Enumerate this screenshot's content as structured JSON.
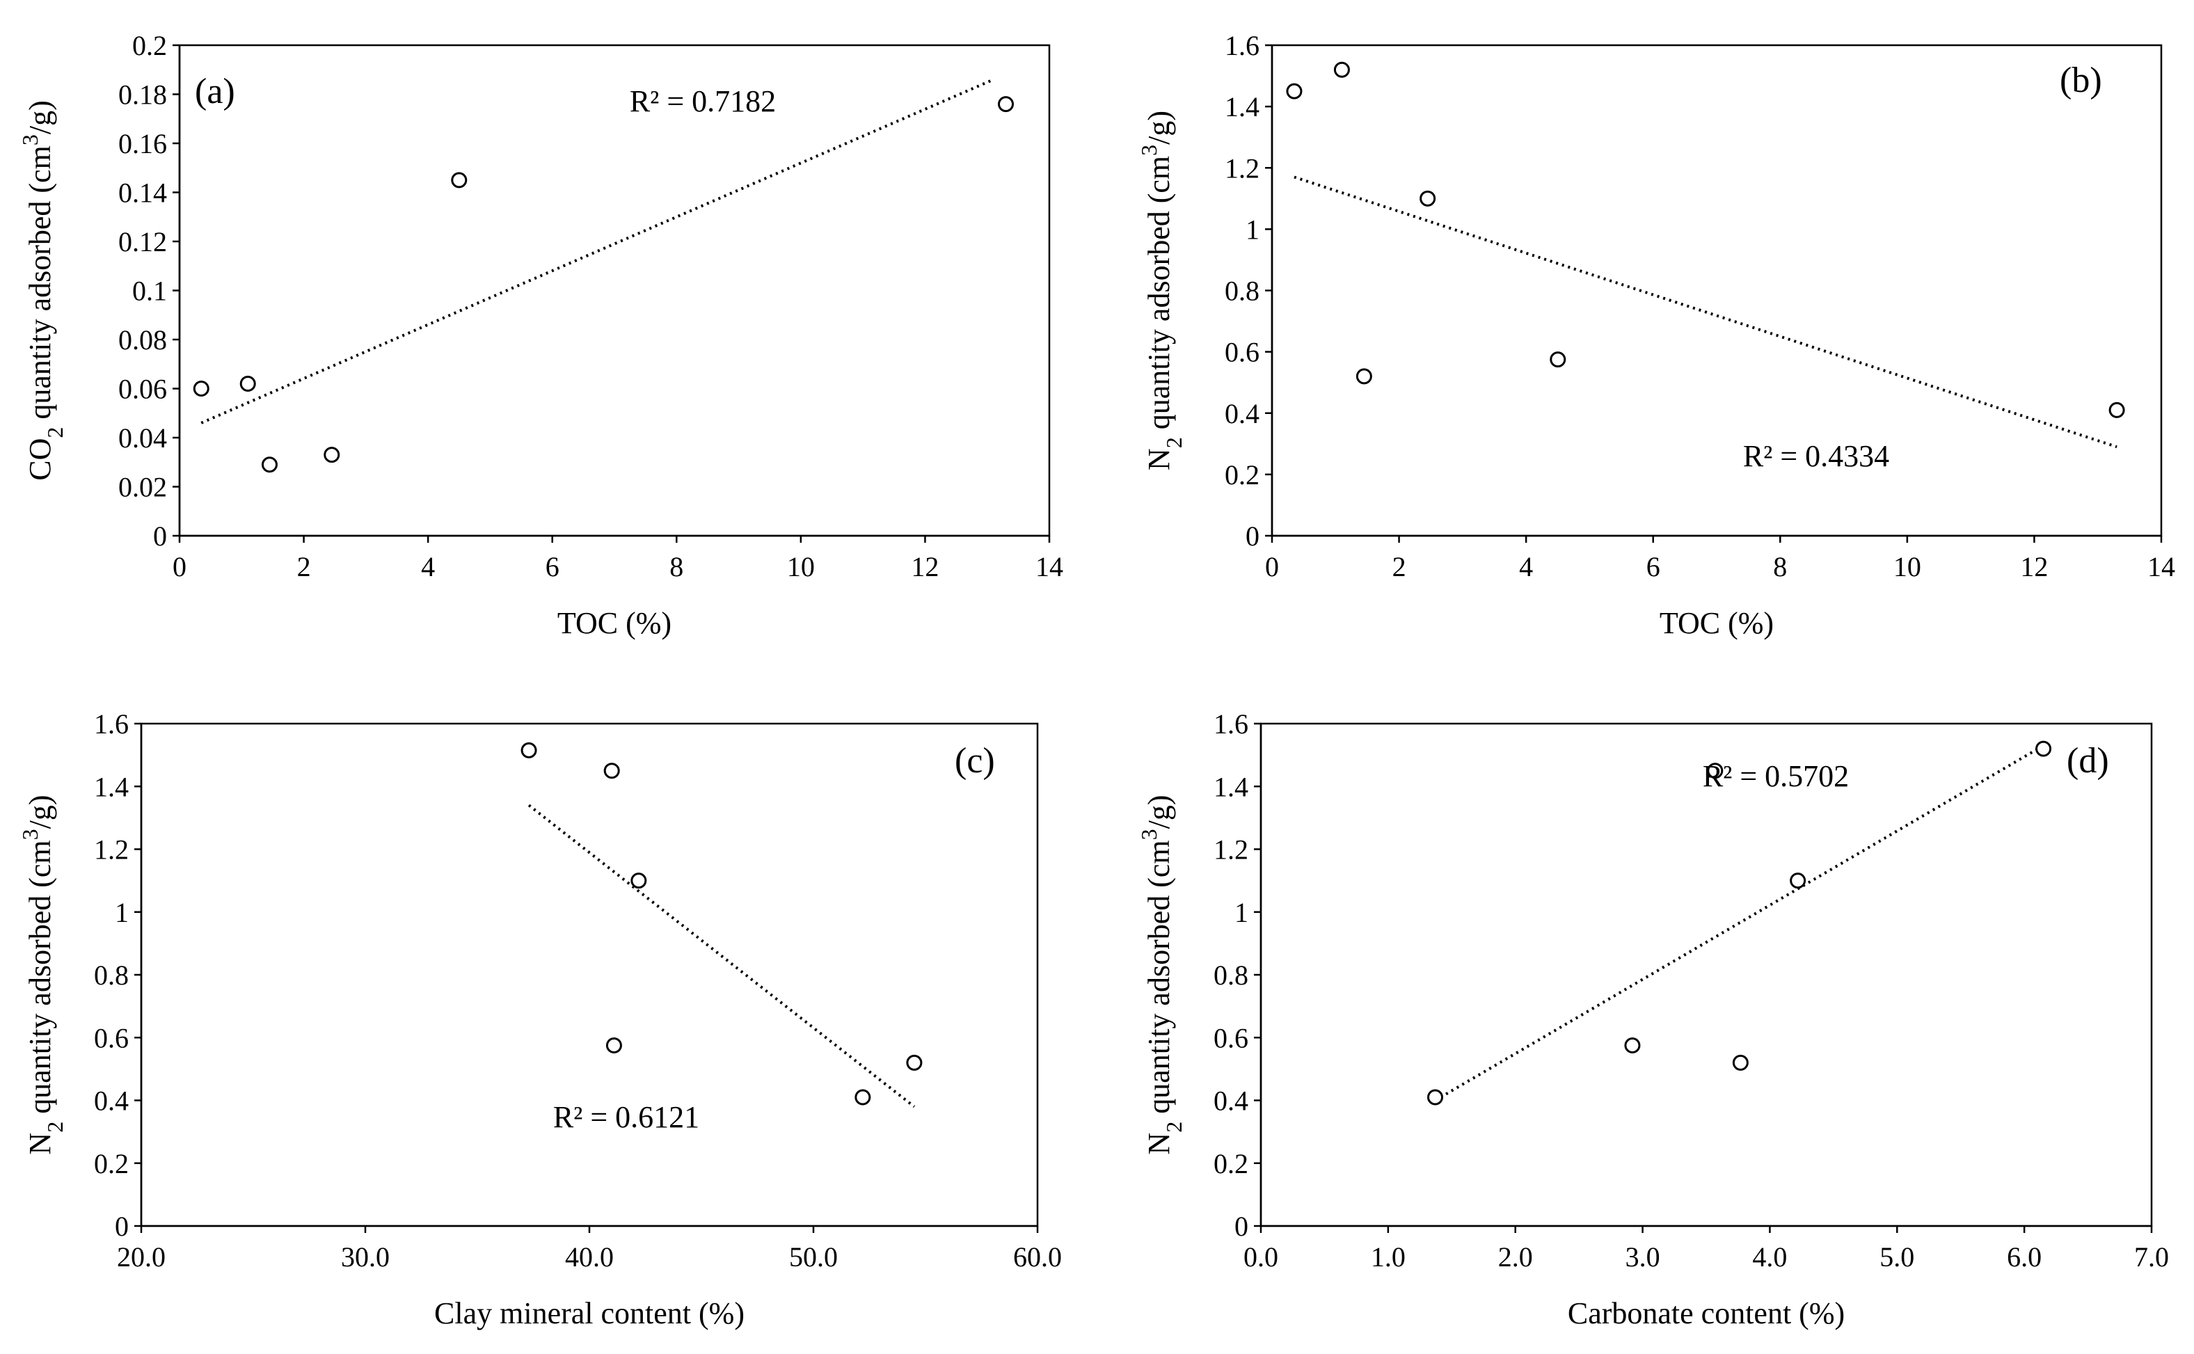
{
  "chart_data": [
    {
      "type": "scatter",
      "panel": "(a)",
      "xlabel": "TOC (%)",
      "ylabel_parts": [
        "CO",
        "2",
        " quantity adsorbed (cm",
        "3",
        "/g)"
      ],
      "xlim": [
        0,
        14
      ],
      "xstep": 2,
      "ylim": [
        0,
        0.2
      ],
      "ystep": 0.02,
      "xticks": [
        "0",
        "2",
        "4",
        "6",
        "8",
        "10",
        "12",
        "14"
      ],
      "yticks": [
        "0",
        "0.02",
        "0.04",
        "0.06",
        "0.08",
        "0.1",
        "0.12",
        "0.14",
        "0.16",
        "0.18",
        "0.2"
      ],
      "points": [
        [
          0.35,
          0.06
        ],
        [
          1.1,
          0.062
        ],
        [
          1.45,
          0.029
        ],
        [
          2.45,
          0.033
        ],
        [
          4.5,
          0.145
        ],
        [
          13.3,
          0.176
        ]
      ],
      "trendline": [
        [
          0.35,
          0.046
        ],
        [
          13.1,
          0.186
        ]
      ],
      "r2": "R² = 0.7182",
      "legend_position": "top-left",
      "r2_position": "top-center"
    },
    {
      "type": "scatter",
      "panel": "(b)",
      "xlabel": "TOC (%)",
      "ylabel_parts": [
        "N",
        "2",
        " quantity adsorbed (cm",
        "3",
        "/g)"
      ],
      "xlim": [
        0,
        14
      ],
      "xstep": 2,
      "ylim": [
        0,
        1.6
      ],
      "ystep": 0.2,
      "xticks": [
        "0",
        "2",
        "4",
        "6",
        "8",
        "10",
        "12",
        "14"
      ],
      "yticks": [
        "0",
        "0.2",
        "0.4",
        "0.6",
        "0.8",
        "1",
        "1.2",
        "1.4",
        "1.6"
      ],
      "points": [
        [
          0.35,
          1.45
        ],
        [
          1.1,
          1.52
        ],
        [
          1.45,
          0.52
        ],
        [
          2.45,
          1.1
        ],
        [
          4.5,
          0.575
        ],
        [
          13.3,
          0.41
        ]
      ],
      "trendline": [
        [
          0.35,
          1.17
        ],
        [
          13.3,
          0.29
        ]
      ],
      "r2": "R² = 0.4334",
      "legend_position": "top-right",
      "r2_position": "bottom-right"
    },
    {
      "type": "scatter",
      "panel": "(c)",
      "xlabel": "Clay mineral content (%)",
      "ylabel_parts": [
        "N",
        "2",
        " quantity adsorbed (cm",
        "3",
        "/g)"
      ],
      "xlim": [
        20,
        60
      ],
      "xstep": 10,
      "ylim": [
        0,
        1.6
      ],
      "ystep": 0.2,
      "xticks": [
        "20.0",
        "30.0",
        "40.0",
        "50.0",
        "60.0"
      ],
      "yticks": [
        "0",
        "0.2",
        "0.4",
        "0.6",
        "0.8",
        "1",
        "1.2",
        "1.4",
        "1.6"
      ],
      "points": [
        [
          37.3,
          1.515
        ],
        [
          41.0,
          1.45
        ],
        [
          42.2,
          1.1
        ],
        [
          41.1,
          0.575
        ],
        [
          52.2,
          0.41
        ],
        [
          54.5,
          0.52
        ]
      ],
      "trendline": [
        [
          37.3,
          1.34
        ],
        [
          54.5,
          0.38
        ]
      ],
      "r2": "R² = 0.6121",
      "legend_position": "top-right",
      "r2_position": "bottom-center"
    },
    {
      "type": "scatter",
      "panel": "(d)",
      "xlabel": "Carbonate content (%)",
      "ylabel_parts": [
        "N",
        "2",
        " quantity adsorbed (cm",
        "3",
        "/g)"
      ],
      "xlim": [
        0,
        7
      ],
      "xstep": 1,
      "ylim": [
        0,
        1.6
      ],
      "ystep": 0.2,
      "xticks": [
        "0.0",
        "1.0",
        "2.0",
        "3.0",
        "4.0",
        "5.0",
        "6.0",
        "7.0"
      ],
      "yticks": [
        "0",
        "0.2",
        "0.4",
        "0.6",
        "0.8",
        "1",
        "1.2",
        "1.4",
        "1.6"
      ],
      "points": [
        [
          1.37,
          0.41
        ],
        [
          2.92,
          0.575
        ],
        [
          3.77,
          0.52
        ],
        [
          4.22,
          1.1
        ],
        [
          3.57,
          1.45
        ],
        [
          6.15,
          1.52
        ]
      ],
      "trendline": [
        [
          1.37,
          0.4
        ],
        [
          6.15,
          1.53
        ]
      ],
      "r2": "R² = 0.5702",
      "legend_position": "top-right",
      "r2_position": "top-center"
    }
  ]
}
